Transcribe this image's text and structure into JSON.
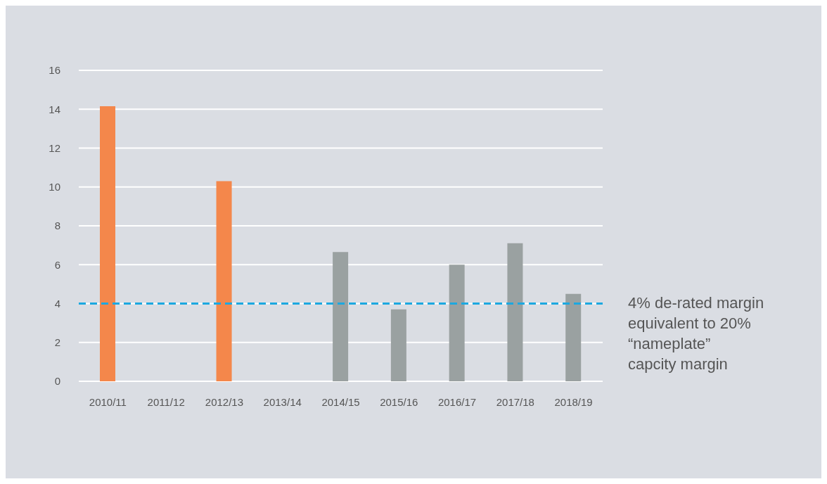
{
  "chart_data": {
    "type": "bar",
    "categories": [
      "2010/11",
      "2011/12",
      "2012/13",
      "2013/14",
      "2014/15",
      "2015/16",
      "2016/17",
      "2017/18",
      "2018/19"
    ],
    "values": [
      14.15,
      null,
      10.3,
      null,
      6.65,
      3.7,
      6.0,
      7.1,
      4.5
    ],
    "colors": [
      "#f4874b",
      "#9aa1a1",
      "#f4874b",
      "#9aa1a1",
      "#9aa1a1",
      "#9aa1a1",
      "#9aa1a1",
      "#9aa1a1",
      "#9aa1a1"
    ],
    "ylim": [
      0,
      16
    ],
    "yticks": [
      0,
      2,
      4,
      6,
      8,
      10,
      12,
      14,
      16
    ],
    "grid": "y",
    "ref_lines": [
      {
        "axis": "y",
        "value": 4,
        "label": "4% de-rated margin\nequivalent to 20%\n“nameplate”\ncapcity margin",
        "color": "#1ca8e0",
        "line_style": "dashed"
      }
    ]
  }
}
